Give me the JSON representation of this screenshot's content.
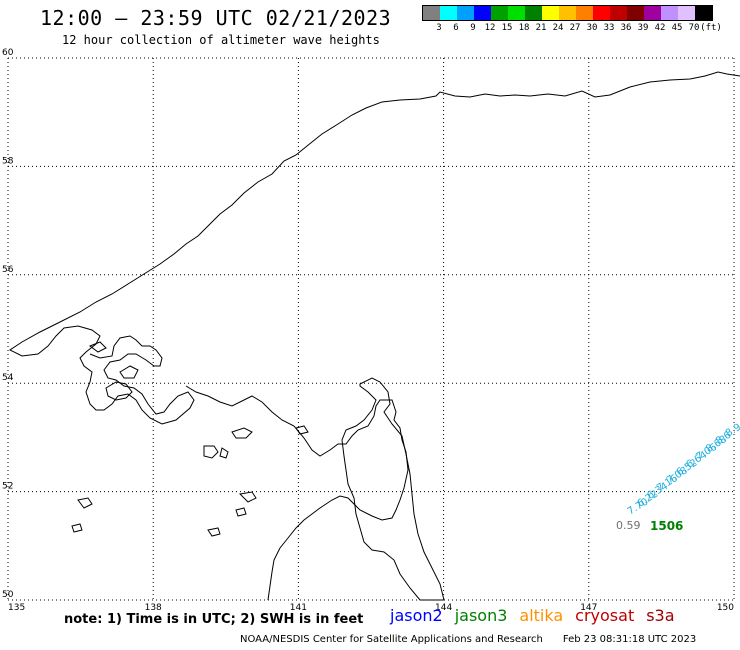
{
  "header": {
    "title": "12:00 — 23:59 UTC 02/21/2023",
    "subtitle": "12 hour collection of altimeter wave heights"
  },
  "legend": {
    "colors": [
      "#808080",
      "#00ffff",
      "#00a0ff",
      "#0000ff",
      "#00a000",
      "#00e000",
      "#008000",
      "#ffff00",
      "#ffc000",
      "#ff8000",
      "#ff0000",
      "#c00000",
      "#800000",
      "#a000a0",
      "#c090ff",
      "#e0c0ff",
      "#000000"
    ],
    "labels": [
      "3",
      "6",
      "9",
      "12",
      "15",
      "18",
      "21",
      "24",
      "27",
      "30",
      "33",
      "36",
      "39",
      "42",
      "45",
      "70",
      "(ft)"
    ]
  },
  "map": {
    "lon_ticks": [
      "135",
      "138",
      "141",
      "144",
      "147",
      "150"
    ],
    "lat_ticks": [
      "50",
      "52",
      "54",
      "56",
      "58",
      "60"
    ],
    "points": [
      {
        "label": "8.9",
        "color": "#20b0e0"
      },
      {
        "label": "8.6",
        "color": "#20b0e0"
      },
      {
        "label": "8.68",
        "color": "#20b0e0"
      },
      {
        "label": "7.06",
        "color": "#20b0e0"
      },
      {
        "label": "6.64",
        "color": "#20b0e0"
      },
      {
        "label": "6.52",
        "color": "#20b0e0"
      },
      {
        "label": "7.08",
        "color": "#20b0e0"
      },
      {
        "label": "7.16",
        "color": "#20b0e0"
      },
      {
        "label": "6.34",
        "color": "#20b0e0"
      },
      {
        "label": "6.22",
        "color": "#20b0e0"
      },
      {
        "label": "7.70",
        "color": "#20b0e0"
      }
    ],
    "marker_value": "0.59",
    "marker_time": "1506"
  },
  "footer": {
    "note": "note: 1) Time is in UTC; 2) SWH is in feet",
    "satellites": [
      {
        "name": "jason2",
        "color": "#0000ff"
      },
      {
        "name": "jason3",
        "color": "#008000"
      },
      {
        "name": "altika",
        "color": "#ff9000"
      },
      {
        "name": "cryosat",
        "color": "#c00000"
      },
      {
        "name": "s3a",
        "color": "#a00000"
      }
    ],
    "credit": "NOAA/NESDIS Center for Satellite Applications and Research",
    "timestamp": "Feb 23 08:31:18 UTC 2023"
  }
}
